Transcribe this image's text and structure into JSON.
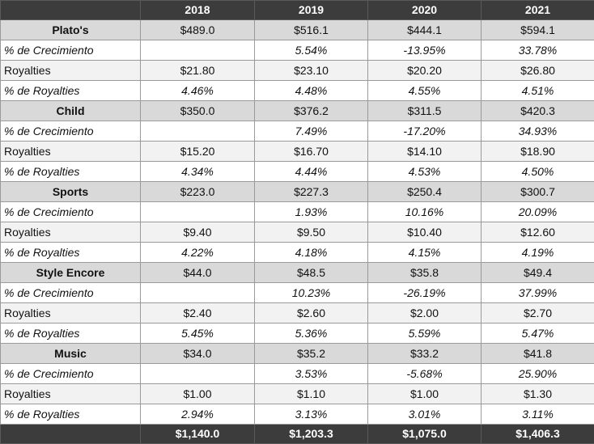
{
  "headers": [
    "",
    "2018",
    "2019",
    "2020",
    "2021"
  ],
  "sections": [
    {
      "name": "Plato's",
      "values": [
        "$489.0",
        "$516.1",
        "$444.1",
        "$594.1"
      ],
      "growth_label": "% de Crecimiento",
      "growth": [
        "",
        "5.54%",
        "-13.95%",
        "33.78%"
      ],
      "royalties_label": "Royalties",
      "royalties": [
        "$21.80",
        "$23.10",
        "$20.20",
        "$26.80"
      ],
      "pct_label": "% de Royalties",
      "pct": [
        "4.46%",
        "4.48%",
        "4.55%",
        "4.51%"
      ]
    },
    {
      "name": "Child",
      "values": [
        "$350.0",
        "$376.2",
        "$311.5",
        "$420.3"
      ],
      "growth_label": "% de Crecimiento",
      "growth": [
        "",
        "7.49%",
        "-17.20%",
        "34.93%"
      ],
      "royalties_label": "Royalties",
      "royalties": [
        "$15.20",
        "$16.70",
        "$14.10",
        "$18.90"
      ],
      "pct_label": "% de Royalties",
      "pct": [
        "4.34%",
        "4.44%",
        "4.53%",
        "4.50%"
      ]
    },
    {
      "name": "Sports",
      "values": [
        "$223.0",
        "$227.3",
        "$250.4",
        "$300.7"
      ],
      "growth_label": "% de Crecimiento",
      "growth": [
        "",
        "1.93%",
        "10.16%",
        "20.09%"
      ],
      "royalties_label": "Royalties",
      "royalties": [
        "$9.40",
        "$9.50",
        "$10.40",
        "$12.60"
      ],
      "pct_label": "% de Royalties",
      "pct": [
        "4.22%",
        "4.18%",
        "4.15%",
        "4.19%"
      ]
    },
    {
      "name": "Style Encore",
      "values": [
        "$44.0",
        "$48.5",
        "$35.8",
        "$49.4"
      ],
      "growth_label": "% de Crecimiento",
      "growth": [
        "",
        "10.23%",
        "-26.19%",
        "37.99%"
      ],
      "royalties_label": "Royalties",
      "royalties": [
        "$2.40",
        "$2.60",
        "$2.00",
        "$2.70"
      ],
      "pct_label": "% de Royalties",
      "pct": [
        "5.45%",
        "5.36%",
        "5.59%",
        "5.47%"
      ]
    },
    {
      "name": "Music",
      "values": [
        "$34.0",
        "$35.2",
        "$33.2",
        "$41.8"
      ],
      "growth_label": "% de Crecimiento",
      "growth": [
        "",
        "3.53%",
        "-5.68%",
        "25.90%"
      ],
      "royalties_label": "Royalties",
      "royalties": [
        "$1.00",
        "$1.10",
        "$1.00",
        "$1.30"
      ],
      "pct_label": "% de Royalties",
      "pct": [
        "2.94%",
        "3.13%",
        "3.01%",
        "3.11%"
      ]
    }
  ],
  "totals": [
    "",
    "$1,140.0",
    "$1,203.3",
    "$1,075.0",
    "$1,406.3"
  ],
  "colors": {
    "header_bg": "#3c3c3c",
    "section_bg": "#d9d9d9",
    "royalties_bg": "#f2f2f2"
  }
}
